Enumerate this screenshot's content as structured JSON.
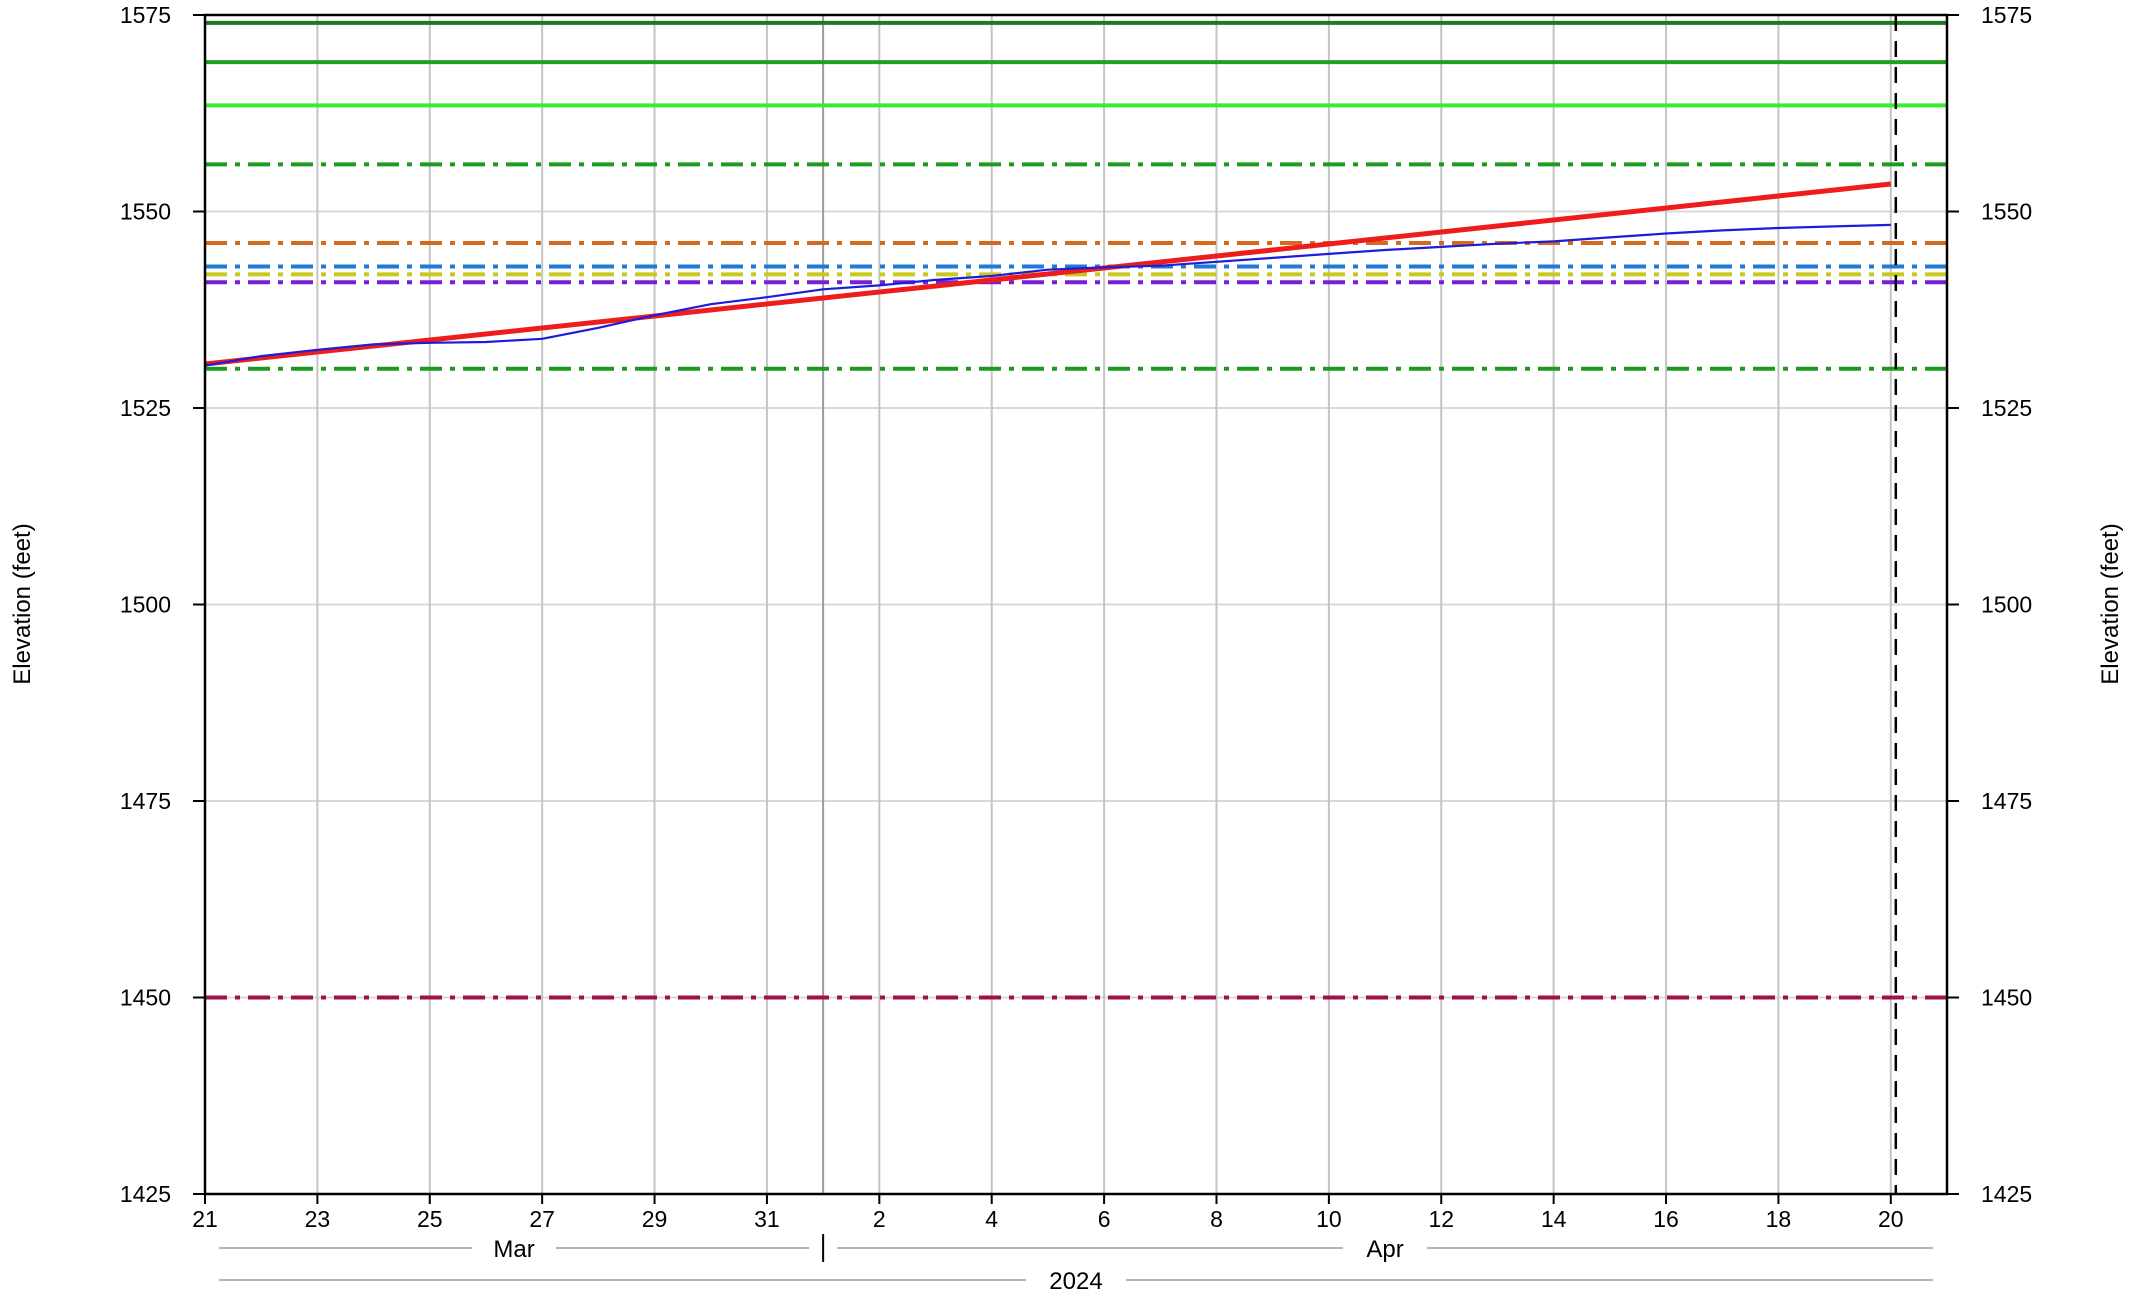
{
  "chart_data": {
    "type": "line",
    "ylabel_left": "Elevation (feet)",
    "ylabel_right": "Elevation (feet)",
    "ylim": [
      1425,
      1575
    ],
    "y_ticks": [
      1425,
      1450,
      1475,
      1500,
      1525,
      1550,
      1575
    ],
    "xlim": [
      "2024-03-21",
      "2024-04-21"
    ],
    "x_tick_labels": [
      "21",
      "23",
      "25",
      "27",
      "29",
      "31",
      "2",
      "4",
      "6",
      "8",
      "10",
      "12",
      "14",
      "16",
      "18",
      "20"
    ],
    "x_tick_dates": [
      "2024-03-21",
      "2024-03-23",
      "2024-03-25",
      "2024-03-27",
      "2024-03-29",
      "2024-03-31",
      "2024-04-02",
      "2024-04-04",
      "2024-04-06",
      "2024-04-08",
      "2024-04-10",
      "2024-04-12",
      "2024-04-14",
      "2024-04-16",
      "2024-04-18",
      "2024-04-20"
    ],
    "month_labels": [
      {
        "text": "Mar",
        "start": "2024-03-21",
        "end": "2024-04-01"
      },
      {
        "text": "Apr",
        "start": "2024-04-01",
        "end": "2024-04-21"
      }
    ],
    "month_boundary": "2024-04-01",
    "year_label": "2024",
    "current_date": "2024-04-20",
    "grid": true,
    "reference_lines": [
      {
        "value": 1574,
        "color": "#1e7a1e",
        "style": "solid"
      },
      {
        "value": 1569,
        "color": "#22a022",
        "style": "solid"
      },
      {
        "value": 1563.5,
        "color": "#33ee33",
        "style": "solid"
      },
      {
        "value": 1556,
        "color": "#1e9a1e",
        "style": "dashdot"
      },
      {
        "value": 1546,
        "color": "#d46a1c",
        "style": "dashdot"
      },
      {
        "value": 1543,
        "color": "#1f7ad6",
        "style": "dashdot"
      },
      {
        "value": 1542,
        "color": "#c8c81e",
        "style": "dashdot"
      },
      {
        "value": 1541,
        "color": "#7a1ed6",
        "style": "dashdot"
      },
      {
        "value": 1530,
        "color": "#1e9a1e",
        "style": "dashdot"
      },
      {
        "value": 1450,
        "color": "#a0104a",
        "style": "dashdot"
      }
    ],
    "series": [
      {
        "color": "#ee1c1c",
        "x": [
          "2024-03-21",
          "2024-04-20"
        ],
        "y": [
          1530.6,
          1553.5
        ]
      },
      {
        "color": "#1c1cdd",
        "x": [
          "2024-03-21",
          "2024-03-22",
          "2024-03-23",
          "2024-03-24",
          "2024-03-25",
          "2024-03-26",
          "2024-03-27",
          "2024-03-28",
          "2024-03-29",
          "2024-03-30",
          "2024-03-31",
          "2024-04-01",
          "2024-04-02",
          "2024-04-03",
          "2024-04-04",
          "2024-04-05",
          "2024-04-06",
          "2024-04-07",
          "2024-04-08",
          "2024-04-09",
          "2024-04-10",
          "2024-04-11",
          "2024-04-12",
          "2024-04-13",
          "2024-04-14",
          "2024-04-15",
          "2024-04-16",
          "2024-04-17",
          "2024-04-18",
          "2024-04-19",
          "2024-04-20"
        ],
        "y": [
          1530.4,
          1531.6,
          1532.4,
          1533.1,
          1533.3,
          1533.4,
          1533.8,
          1535.2,
          1536.8,
          1538.2,
          1539.1,
          1540.1,
          1540.6,
          1541.3,
          1541.8,
          1542.6,
          1542.9,
          1543.1,
          1543.6,
          1544.1,
          1544.6,
          1545.1,
          1545.5,
          1545.9,
          1546.2,
          1546.7,
          1547.2,
          1547.6,
          1547.9,
          1548.1,
          1548.3
        ]
      }
    ]
  }
}
